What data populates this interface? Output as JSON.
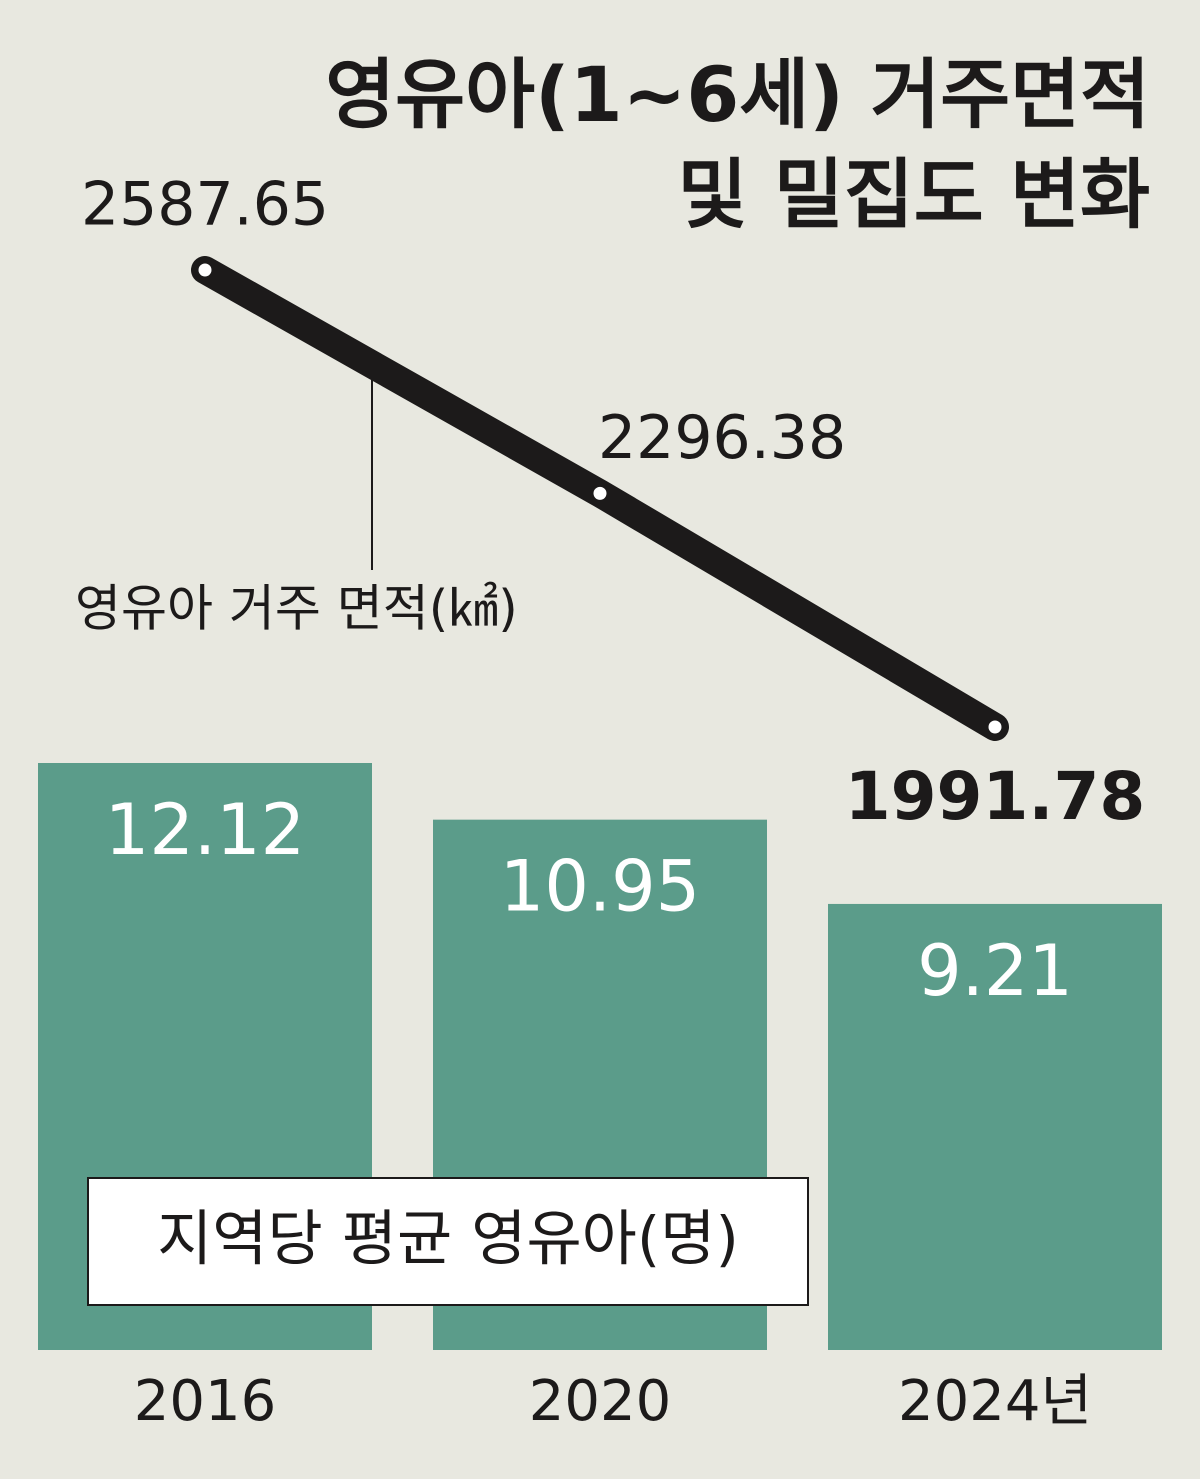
{
  "chart_data": {
    "type": "bar",
    "title": [
      "영유아(1~6세) 거주면적",
      "및 밀집도 변화"
    ],
    "categories": [
      "2016",
      "2020",
      "2024년"
    ],
    "series": [
      {
        "name": "지역당 평균 영유아(명)",
        "color": "#5b9c8a",
        "values": [
          12.12,
          10.95,
          9.21
        ]
      },
      {
        "name": "영유아 거주 면적(㎢)",
        "type": "line",
        "axis": "y2",
        "color": "#1c1a1a",
        "values": [
          2587.65,
          2296.38,
          1991.78
        ]
      }
    ]
  }
}
